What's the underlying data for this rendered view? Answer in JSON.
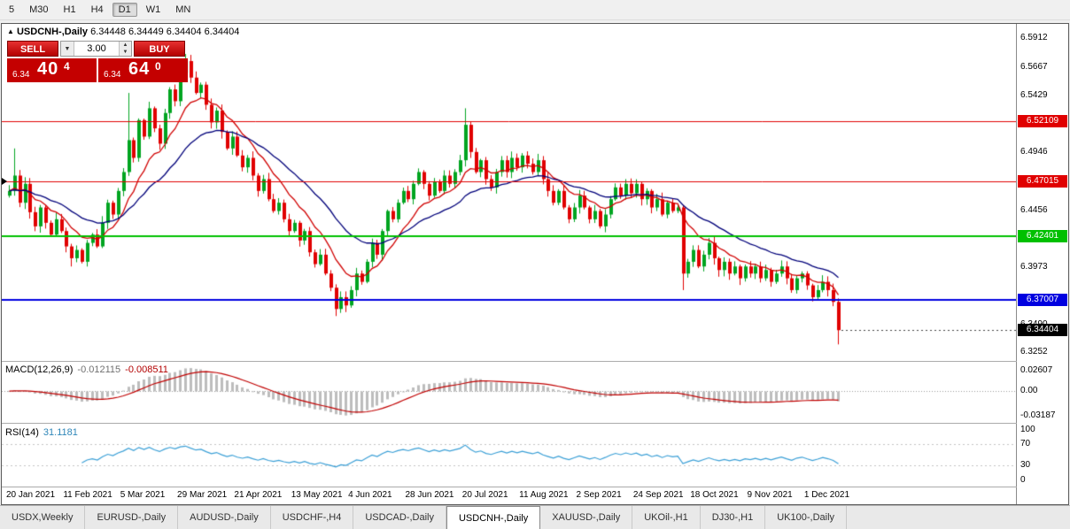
{
  "toolbar": {
    "timeframes": [
      {
        "label": "5",
        "active": false
      },
      {
        "label": "M30",
        "active": false
      },
      {
        "label": "H1",
        "active": false
      },
      {
        "label": "H4",
        "active": false
      },
      {
        "label": "D1",
        "active": true
      },
      {
        "label": "W1",
        "active": false
      },
      {
        "label": "MN",
        "active": false
      }
    ]
  },
  "chart": {
    "marker": "▲",
    "title": "USDCNH-,Daily",
    "quotes": "6.34448 6.34449 6.34404 6.34404",
    "trade_panel": {
      "sell_label": "SELL",
      "buy_label": "BUY",
      "volume": "3.00",
      "dropdown_icon": "▼",
      "spin_up": "▲",
      "spin_down": "▼",
      "sell_price": {
        "prefix": "6.34",
        "big": "40",
        "sup": "4"
      },
      "buy_price": {
        "prefix": "6.34",
        "big": "64",
        "sup": "0"
      }
    }
  },
  "chart_data": {
    "type": "candlestick",
    "symbol": "USDCNH-",
    "timeframe": "Daily",
    "x_labels": [
      "20 Jan 2021",
      "11 Feb 2021",
      "5 Mar 2021",
      "29 Mar 2021",
      "21 Apr 2021",
      "13 May 2021",
      "4 Jun 2021",
      "28 Jun 2021",
      "20 Jul 2021",
      "11 Aug 2021",
      "2 Sep 2021",
      "24 Sep 2021",
      "18 Oct 2021",
      "9 Nov 2021",
      "1 Dec 2021"
    ],
    "label_every": 11,
    "price_range": {
      "max": 6.6035,
      "min": 6.318
    },
    "price_ticks": [
      {
        "text": "6.5912",
        "price": 6.5912
      },
      {
        "text": "6.5667",
        "price": 6.5667
      },
      {
        "text": "6.5429",
        "price": 6.5429
      },
      {
        "text": "6.4946",
        "price": 6.4946
      },
      {
        "text": "6.4456",
        "price": 6.4456
      },
      {
        "text": "6.3973",
        "price": 6.3973
      },
      {
        "text": "6.3490",
        "price": 6.349
      },
      {
        "text": "6.3252",
        "price": 6.3252
      }
    ],
    "closes": [
      6.462,
      6.475,
      6.452,
      6.468,
      6.444,
      6.432,
      6.448,
      6.435,
      6.425,
      6.438,
      6.428,
      6.415,
      6.405,
      6.412,
      6.402,
      6.418,
      6.425,
      6.415,
      6.435,
      6.452,
      6.442,
      6.462,
      6.478,
      6.505,
      6.49,
      6.522,
      6.508,
      6.532,
      6.515,
      6.502,
      6.528,
      6.548,
      6.538,
      6.562,
      6.572,
      6.558,
      6.545,
      6.552,
      6.535,
      6.52,
      6.53,
      6.512,
      6.498,
      6.508,
      6.492,
      6.482,
      6.49,
      6.475,
      6.462,
      6.472,
      6.455,
      6.445,
      6.452,
      6.438,
      6.428,
      6.435,
      6.42,
      6.428,
      6.41,
      6.4,
      6.408,
      6.392,
      6.38,
      6.362,
      6.372,
      6.365,
      6.378,
      6.392,
      6.385,
      6.402,
      6.418,
      6.408,
      6.428,
      6.445,
      6.438,
      6.452,
      6.462,
      6.455,
      6.468,
      6.478,
      6.468,
      6.458,
      6.47,
      6.462,
      6.475,
      6.468,
      6.478,
      6.488,
      6.518,
      6.495,
      6.478,
      6.488,
      6.472,
      6.465,
      6.478,
      6.488,
      6.478,
      6.49,
      6.482,
      6.492,
      6.485,
      6.478,
      6.488,
      6.472,
      6.462,
      6.452,
      6.462,
      6.448,
      6.438,
      6.448,
      6.458,
      6.448,
      6.438,
      6.445,
      6.432,
      6.442,
      6.455,
      6.465,
      6.458,
      6.468,
      6.46,
      6.468,
      6.455,
      6.462,
      6.448,
      6.455,
      6.442,
      6.452,
      6.445,
      6.448,
      6.392,
      6.402,
      6.412,
      6.398,
      6.408,
      6.418,
      6.405,
      6.395,
      6.402,
      6.392,
      6.398,
      6.388,
      6.398,
      6.392,
      6.398,
      6.388,
      6.395,
      6.385,
      6.392,
      6.398,
      6.388,
      6.378,
      6.388,
      6.392,
      6.382,
      6.372,
      6.378,
      6.385,
      6.378,
      6.368,
      6.34404
    ],
    "wick_overrides": {
      "1": {
        "high": 6.498
      },
      "12": {
        "low": 6.398
      },
      "23": {
        "high": 6.545
      },
      "34": {
        "high": 6.578
      },
      "63": {
        "low": 6.356
      },
      "88": {
        "high": 6.532
      },
      "130": {
        "low": 6.378
      },
      "160": {
        "high": 6.371,
        "low": 6.332
      }
    },
    "colors": {
      "up": "#00a420",
      "down": "#e00000",
      "ma_fast": "#d00000",
      "ma_slow": "#00007a",
      "macd_hist": "#bdbdbd",
      "macd_signal": "#c00000",
      "rsi": "#3a9fd6"
    },
    "moving_averages": [
      {
        "period": 10
      },
      {
        "period": 25
      }
    ],
    "hlines": [
      {
        "price": 6.52109,
        "label": "6.52109",
        "color": "#e00000",
        "width": 1
      },
      {
        "price": 6.47015,
        "label": "6.47015",
        "color": "#e00000",
        "width": 1
      },
      {
        "price": 6.42401,
        "label": "6.42401",
        "color": "#00c000",
        "width": 2
      },
      {
        "price": 6.37007,
        "label": "6.37007",
        "color": "#0000e0",
        "width": 2
      }
    ],
    "current_price": {
      "price": 6.34404,
      "label": "6.34404",
      "color": "#000000"
    },
    "macd": {
      "label": "MACD(12,26,9)",
      "value_main": "-0.012115",
      "value_signal": "-0.008511",
      "fast": 12,
      "slow": 26,
      "signal": 9,
      "axis": [
        {
          "text": "0.02607",
          "value": 0.02607
        },
        {
          "text": "0.00",
          "value": 0
        },
        {
          "text": "-0.03187",
          "value": -0.03187
        }
      ]
    },
    "rsi": {
      "label": "RSI(14)",
      "value_text": "31.1181",
      "period": 14,
      "levels": [
        70,
        30
      ],
      "axis": [
        {
          "text": "100",
          "value": 100
        },
        {
          "text": "70",
          "value": 70
        },
        {
          "text": "30",
          "value": 30
        },
        {
          "text": "0",
          "value": 0
        }
      ]
    }
  },
  "tabs": {
    "items": [
      "USDX,Weekly",
      "EURUSD-,Daily",
      "AUDUSD-,Daily",
      "USDCHF-,H4",
      "USDCAD-,Daily",
      "USDCNH-,Daily",
      "XAUUSD-,Daily",
      "UKOil-,H1",
      "DJ30-,H1",
      "UK100-,Daily"
    ],
    "active_index": 5
  }
}
